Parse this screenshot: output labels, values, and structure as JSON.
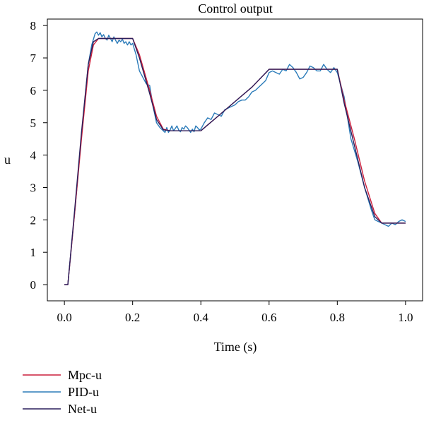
{
  "chart_data": {
    "type": "line",
    "title": "Control output",
    "xlabel": "Time (s)",
    "ylabel": "u",
    "xlim": [
      -0.05,
      1.05
    ],
    "ylim": [
      -0.5,
      8.2
    ],
    "xticks": [
      0.0,
      0.2,
      0.4,
      0.6,
      0.8,
      1.0
    ],
    "xtick_labels": [
      "0.0",
      "0.2",
      "0.4",
      "0.6",
      "0.8",
      "1.0"
    ],
    "yticks": [
      0,
      1,
      2,
      3,
      4,
      5,
      6,
      7,
      8
    ],
    "ytick_labels": [
      "0",
      "1",
      "2",
      "3",
      "4",
      "5",
      "6",
      "7",
      "8"
    ],
    "legend_position": "bottom-left, below plot",
    "series": [
      {
        "name": "Mpc-u",
        "color": "#cc1f3c",
        "x": [
          0.0,
          0.01,
          0.03,
          0.05,
          0.07,
          0.085,
          0.1,
          0.2,
          0.22,
          0.25,
          0.27,
          0.29,
          0.31,
          0.4,
          0.45,
          0.5,
          0.55,
          0.6,
          0.8,
          0.82,
          0.85,
          0.88,
          0.91,
          0.93,
          0.95,
          1.0
        ],
        "y": [
          0.0,
          0.0,
          2.2,
          4.5,
          6.6,
          7.4,
          7.6,
          7.6,
          7.1,
          6.0,
          5.2,
          4.8,
          4.75,
          4.75,
          5.2,
          5.65,
          6.1,
          6.65,
          6.65,
          5.7,
          4.5,
          3.2,
          2.2,
          1.9,
          1.9,
          1.9
        ]
      },
      {
        "name": "PID-u",
        "color": "#2b7bb9",
        "x": [
          0.0,
          0.01,
          0.03,
          0.05,
          0.07,
          0.08,
          0.09,
          0.095,
          0.1,
          0.105,
          0.11,
          0.115,
          0.12,
          0.125,
          0.13,
          0.135,
          0.14,
          0.145,
          0.15,
          0.155,
          0.16,
          0.165,
          0.17,
          0.175,
          0.18,
          0.185,
          0.19,
          0.195,
          0.2,
          0.21,
          0.22,
          0.24,
          0.25,
          0.26,
          0.27,
          0.28,
          0.285,
          0.29,
          0.295,
          0.3,
          0.305,
          0.31,
          0.315,
          0.32,
          0.325,
          0.33,
          0.335,
          0.34,
          0.345,
          0.35,
          0.355,
          0.36,
          0.365,
          0.37,
          0.375,
          0.38,
          0.385,
          0.39,
          0.395,
          0.4,
          0.41,
          0.42,
          0.43,
          0.44,
          0.45,
          0.46,
          0.47,
          0.48,
          0.49,
          0.5,
          0.51,
          0.52,
          0.53,
          0.54,
          0.55,
          0.56,
          0.57,
          0.58,
          0.59,
          0.6,
          0.61,
          0.62,
          0.63,
          0.64,
          0.65,
          0.66,
          0.67,
          0.68,
          0.69,
          0.7,
          0.71,
          0.72,
          0.73,
          0.74,
          0.75,
          0.76,
          0.77,
          0.78,
          0.79,
          0.8,
          0.82,
          0.84,
          0.86,
          0.88,
          0.9,
          0.91,
          0.92,
          0.93,
          0.94,
          0.95,
          0.96,
          0.97,
          0.98,
          0.99,
          1.0
        ],
        "y": [
          0.0,
          0.0,
          2.2,
          4.6,
          6.8,
          7.4,
          7.75,
          7.8,
          7.7,
          7.78,
          7.65,
          7.72,
          7.6,
          7.55,
          7.7,
          7.6,
          7.5,
          7.65,
          7.55,
          7.45,
          7.55,
          7.5,
          7.58,
          7.45,
          7.5,
          7.4,
          7.5,
          7.4,
          7.45,
          7.1,
          6.6,
          6.2,
          6.15,
          5.5,
          5.0,
          4.85,
          4.8,
          4.75,
          4.7,
          4.85,
          4.7,
          4.78,
          4.9,
          4.75,
          4.82,
          4.9,
          4.78,
          4.72,
          4.85,
          4.8,
          4.9,
          4.85,
          4.78,
          4.7,
          4.8,
          4.72,
          4.9,
          4.85,
          4.78,
          4.8,
          5.0,
          5.15,
          5.1,
          5.3,
          5.25,
          5.2,
          5.4,
          5.45,
          5.5,
          5.55,
          5.65,
          5.7,
          5.7,
          5.8,
          5.95,
          6.0,
          6.1,
          6.2,
          6.3,
          6.55,
          6.6,
          6.55,
          6.5,
          6.65,
          6.6,
          6.8,
          6.7,
          6.55,
          6.35,
          6.4,
          6.55,
          6.75,
          6.7,
          6.6,
          6.6,
          6.8,
          6.65,
          6.55,
          6.7,
          6.55,
          5.8,
          4.5,
          3.8,
          3.0,
          2.3,
          2.0,
          1.95,
          1.9,
          1.85,
          1.8,
          1.9,
          1.85,
          1.95,
          2.0,
          1.95
        ]
      },
      {
        "name": "Net-u",
        "color": "#2a1f5c",
        "x": [
          0.0,
          0.01,
          0.03,
          0.05,
          0.07,
          0.085,
          0.1,
          0.2,
          0.22,
          0.25,
          0.27,
          0.29,
          0.31,
          0.4,
          0.45,
          0.5,
          0.55,
          0.6,
          0.8,
          0.82,
          0.85,
          0.88,
          0.91,
          0.93,
          0.95,
          1.0
        ],
        "y": [
          0.0,
          0.0,
          2.3,
          4.7,
          6.8,
          7.5,
          7.6,
          7.6,
          7.0,
          5.9,
          5.1,
          4.78,
          4.75,
          4.75,
          5.2,
          5.65,
          6.1,
          6.65,
          6.65,
          5.6,
          4.3,
          3.0,
          2.1,
          1.9,
          1.9,
          1.9
        ]
      }
    ]
  }
}
